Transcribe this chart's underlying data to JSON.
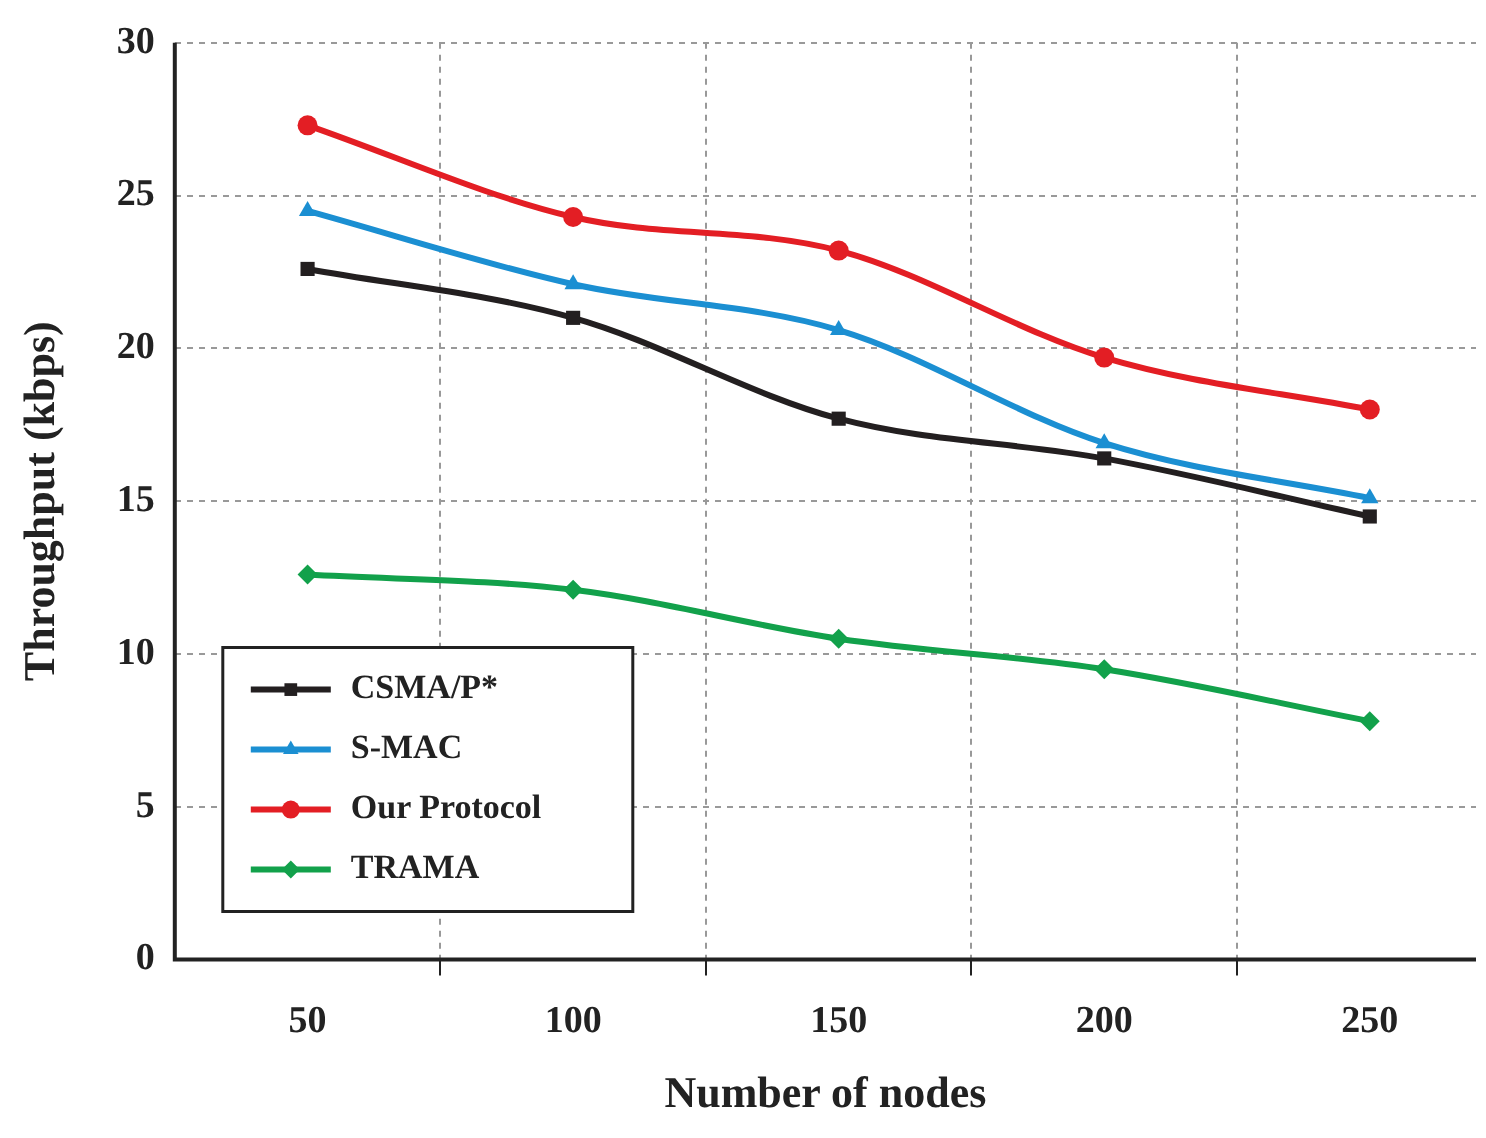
{
  "chart_data": {
    "type": "line",
    "xlabel": "Number of nodes",
    "ylabel": "Throughput (kbps)",
    "x": [
      50,
      100,
      150,
      200,
      250
    ],
    "series": [
      {
        "name": "CSMA/P*",
        "color": "#231f20",
        "marker": "square",
        "values": [
          22.6,
          21.0,
          17.7,
          16.4,
          14.5
        ]
      },
      {
        "name": "S-MAC",
        "color": "#1b8fd2",
        "marker": "triangle",
        "values": [
          24.5,
          22.1,
          20.6,
          16.9,
          15.1
        ]
      },
      {
        "name": "Our Protocol",
        "color": "#e31e24",
        "marker": "circle",
        "values": [
          27.3,
          24.3,
          23.2,
          19.7,
          18.0
        ]
      },
      {
        "name": "TRAMA",
        "color": "#12a14b",
        "marker": "diamond",
        "values": [
          12.6,
          12.1,
          10.5,
          9.5,
          7.8
        ]
      }
    ],
    "xlim": [
      25,
      270
    ],
    "xticks": [
      50,
      {
        "value": 75,
        "label": null
      },
      100,
      {
        "value": 125,
        "label": null
      },
      150,
      {
        "value": 175,
        "label": null
      },
      200,
      {
        "value": 225,
        "label": null
      },
      250
    ],
    "ylim": [
      0,
      30
    ],
    "yticks": [
      0,
      5,
      10,
      15,
      20,
      25,
      30
    ],
    "grid": true,
    "legend": "bottom left",
    "line_style": "solid"
  }
}
